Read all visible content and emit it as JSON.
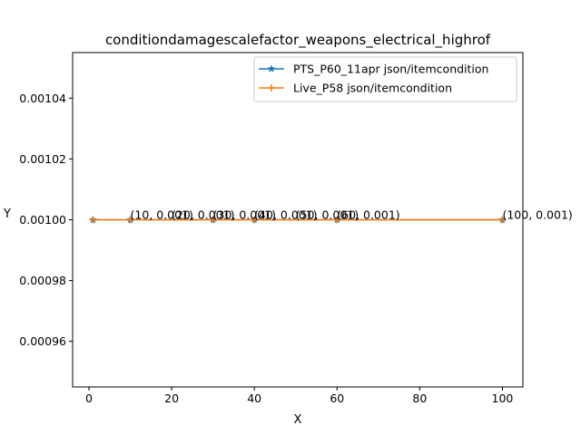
{
  "chart_data": {
    "type": "line",
    "title": "conditiondamagescalefactor_weapons_electrical_highrof",
    "xlabel": "X",
    "ylabel": "Y",
    "xlim": [
      -3.95,
      104.95
    ],
    "ylim": [
      0.000945,
      0.001055
    ],
    "x_ticks": [
      0,
      20,
      40,
      60,
      80,
      100
    ],
    "y_ticks": [
      0.00096,
      0.00098,
      0.001,
      0.00102,
      0.00104
    ],
    "y_tick_labels": [
      "0.00096",
      "0.00098",
      "0.00100",
      "0.00102",
      "0.00104"
    ],
    "grid": false,
    "legend_position": "top-right",
    "series": [
      {
        "name": "PTS_P60_11apr json/itemcondition",
        "color": "#1f77b4",
        "marker": "star",
        "x": [
          1,
          10,
          30,
          40,
          60,
          100
        ],
        "y": [
          0.001,
          0.001,
          0.001,
          0.001,
          0.001,
          0.001
        ]
      },
      {
        "name": "Live_P58 json/itemcondition",
        "color": "#ff7f0e",
        "marker": "plus",
        "x": [
          1,
          10,
          30,
          40,
          60,
          100
        ],
        "y": [
          0.001,
          0.001,
          0.001,
          0.001,
          0.001,
          0.001
        ]
      }
    ],
    "annotations": [
      {
        "x": 10,
        "y": 0.001,
        "text": "(10, 0.001)"
      },
      {
        "x": 20,
        "y": 0.001,
        "text": "(20, 0.001)"
      },
      {
        "x": 30,
        "y": 0.001,
        "text": "(30, 0.001)"
      },
      {
        "x": 40,
        "y": 0.001,
        "text": "(40, 0.001)"
      },
      {
        "x": 50,
        "y": 0.001,
        "text": "(50, 0.001)"
      },
      {
        "x": 60,
        "y": 0.001,
        "text": "(60, 0.001)"
      },
      {
        "x": 100,
        "y": 0.001,
        "text": "(100, 0.001)"
      }
    ]
  }
}
